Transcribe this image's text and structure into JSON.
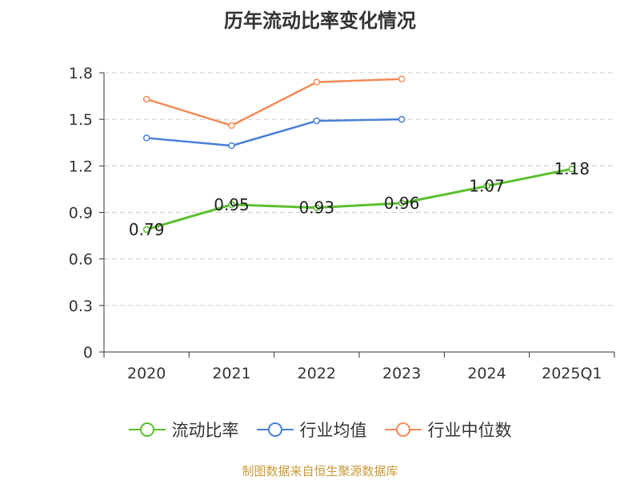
{
  "chart_data": {
    "type": "line",
    "title": "历年流动比率变化情况",
    "categories": [
      "2020",
      "2021",
      "2022",
      "2023",
      "2024",
      "2025Q1"
    ],
    "y_ticks": [
      "0",
      "0.3",
      "0.6",
      "0.9",
      "1.2",
      "1.5",
      "1.8"
    ],
    "ylim": [
      0,
      1.8
    ],
    "grid": true,
    "legend_position": "bottom",
    "series": [
      {
        "name": "流动比率",
        "color": "#5bbf2e",
        "values": [
          0.79,
          0.95,
          0.93,
          0.96,
          1.07,
          1.18
        ],
        "labels": [
          "0.79",
          "0.95",
          "0.93",
          "0.96",
          "1.07",
          "1.18"
        ]
      },
      {
        "name": "行业均值",
        "color": "#4a7fd8",
        "values": [
          1.38,
          1.33,
          1.49,
          1.5,
          null,
          null
        ]
      },
      {
        "name": "行业中位数",
        "color": "#f38b57",
        "values": [
          1.63,
          1.46,
          1.74,
          1.76,
          null,
          null
        ]
      }
    ]
  },
  "source": "制图数据来自恒生聚源数据库"
}
